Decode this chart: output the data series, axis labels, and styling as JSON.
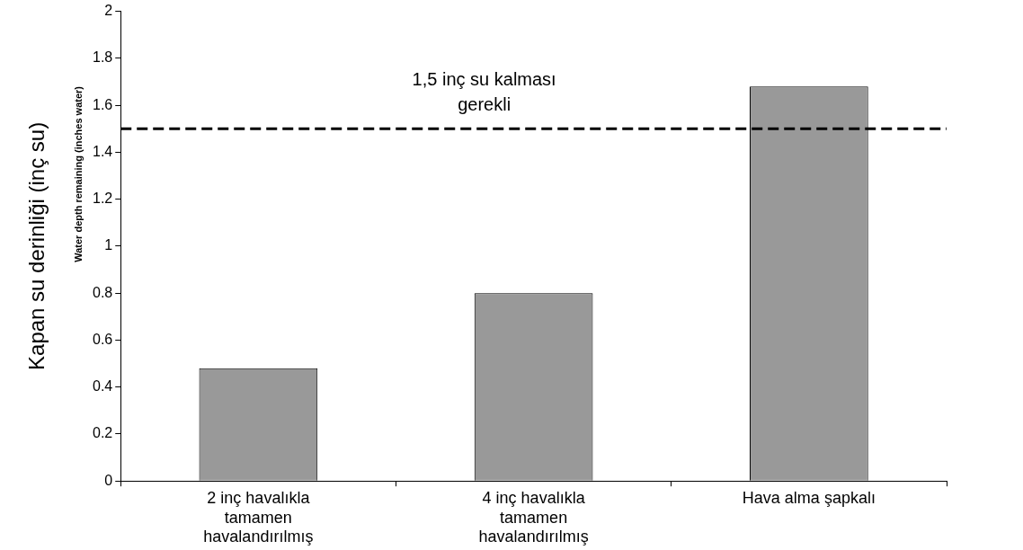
{
  "chart_data": {
    "type": "bar",
    "ylabel": "Kapan su derinliği (inç su)",
    "annotations": [
      "Water depth remaining (inches water)"
    ],
    "categories": [
      "2 inç havalıkla tamamen havalandırılmış",
      "4 inç havalıkla tamamen havalandırılmış",
      "Hava alma şapkalı"
    ],
    "values": [
      0.48,
      0.8,
      1.68
    ],
    "color": "#999999",
    "ylim": [
      0,
      2
    ],
    "yticks": [
      0,
      0.2,
      0.4,
      0.6,
      0.8,
      1,
      1.2,
      1.4,
      1.6,
      1.8,
      2
    ],
    "ref_lines": [
      {
        "axis": "y",
        "value": 1.5,
        "label": "1,5 inç su kalması gerekli",
        "color": "#000000",
        "line_style": "dashed"
      }
    ],
    "grid": false,
    "legend": false
  }
}
